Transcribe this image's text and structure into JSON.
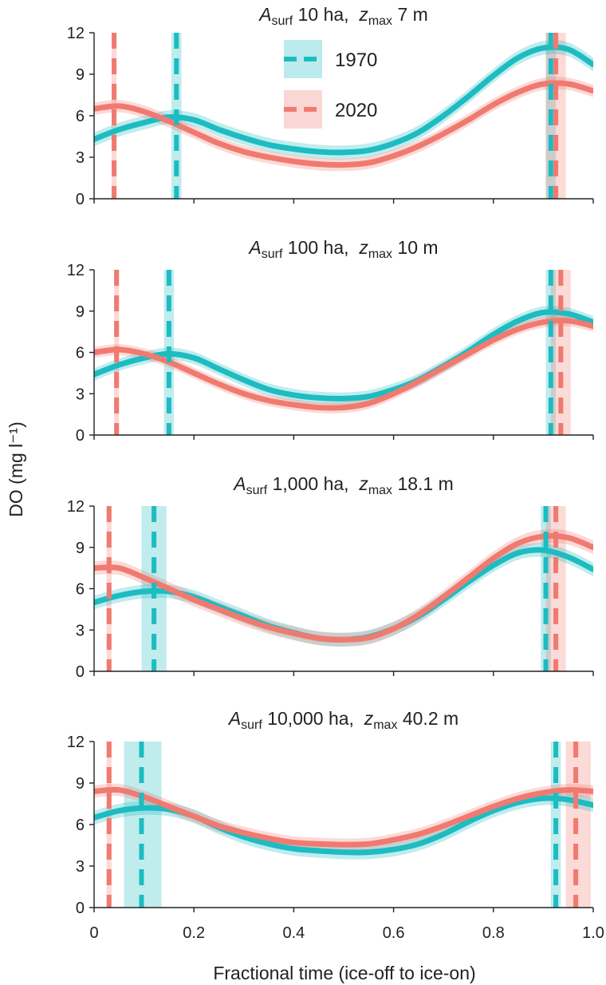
{
  "figure": {
    "ylabel": "DO (mg l⁻¹)",
    "xlabel": "Fractional time (ice-off to ice-on)"
  },
  "legend": {
    "items": [
      {
        "label": "1970",
        "color": "#1dbcc1"
      },
      {
        "label": "2020",
        "color": "#f07a70"
      }
    ]
  },
  "chart_data": [
    {
      "type": "line",
      "title_A": "A",
      "title_A_sub": "surf",
      "title_A_val": " 10 ha,  ",
      "title_z": "z",
      "title_z_sub": "max",
      "title_z_val": " 7 m",
      "xlim": [
        0,
        1
      ],
      "ylim": [
        0,
        12
      ],
      "xticks": [
        0,
        0.2,
        0.4,
        0.6,
        0.8,
        1.0
      ],
      "xtick_labels": [
        "0",
        "0.2",
        "0.4",
        "0.6",
        "0.8",
        "1.0"
      ],
      "yticks": [
        0,
        3,
        6,
        9,
        12
      ],
      "ytick_labels": [
        "0",
        "3",
        "6",
        "9",
        "12"
      ],
      "series": [
        {
          "name": "1970",
          "color": "#1dbcc1",
          "band": 0.5,
          "x": [
            0,
            0.05,
            0.1,
            0.15,
            0.2,
            0.25,
            0.3,
            0.35,
            0.4,
            0.45,
            0.5,
            0.55,
            0.6,
            0.65,
            0.7,
            0.75,
            0.8,
            0.85,
            0.9,
            0.95,
            1.0
          ],
          "y": [
            4.3,
            5.0,
            5.5,
            5.9,
            5.7,
            5.0,
            4.4,
            3.9,
            3.6,
            3.4,
            3.35,
            3.5,
            4.0,
            4.8,
            6.0,
            7.4,
            8.9,
            10.2,
            10.9,
            10.8,
            9.7
          ]
        },
        {
          "name": "2020",
          "color": "#f07a70",
          "band": 0.45,
          "x": [
            0,
            0.05,
            0.1,
            0.15,
            0.2,
            0.25,
            0.3,
            0.35,
            0.4,
            0.45,
            0.5,
            0.55,
            0.6,
            0.65,
            0.7,
            0.75,
            0.8,
            0.85,
            0.9,
            0.95,
            1.0
          ],
          "y": [
            6.5,
            6.7,
            6.3,
            5.6,
            4.8,
            4.0,
            3.4,
            3.0,
            2.7,
            2.5,
            2.45,
            2.6,
            3.1,
            3.8,
            4.7,
            5.7,
            6.8,
            7.7,
            8.3,
            8.3,
            7.8
          ]
        }
      ],
      "vlines": [
        {
          "series": "2020",
          "x": 0.04,
          "lo": 0.035,
          "hi": 0.045,
          "color": "#f07a70"
        },
        {
          "series": "1970",
          "x": 0.165,
          "lo": 0.155,
          "hi": 0.175,
          "color": "#1dbcc1"
        },
        {
          "series": "1970",
          "x": 0.915,
          "lo": 0.905,
          "hi": 0.925,
          "color": "#1dbcc1"
        },
        {
          "series": "2020",
          "x": 0.925,
          "lo": 0.905,
          "hi": 0.945,
          "color": "#f07a70"
        }
      ],
      "show_xticklabels": false
    },
    {
      "type": "line",
      "title_A": "A",
      "title_A_sub": "surf",
      "title_A_val": " 100 ha,  ",
      "title_z": "z",
      "title_z_sub": "max",
      "title_z_val": " 10 m",
      "xlim": [
        0,
        1
      ],
      "ylim": [
        0,
        12
      ],
      "xticks": [
        0,
        0.2,
        0.4,
        0.6,
        0.8,
        1.0
      ],
      "xtick_labels": [
        "0",
        "0.2",
        "0.4",
        "0.6",
        "0.8",
        "1.0"
      ],
      "yticks": [
        0,
        3,
        6,
        9,
        12
      ],
      "ytick_labels": [
        "0",
        "3",
        "6",
        "9",
        "12"
      ],
      "series": [
        {
          "name": "1970",
          "color": "#1dbcc1",
          "band": 0.45,
          "x": [
            0,
            0.05,
            0.1,
            0.15,
            0.2,
            0.25,
            0.3,
            0.35,
            0.4,
            0.45,
            0.5,
            0.55,
            0.6,
            0.65,
            0.7,
            0.75,
            0.8,
            0.85,
            0.9,
            0.95,
            1.0
          ],
          "y": [
            4.4,
            5.1,
            5.6,
            5.9,
            5.6,
            4.8,
            4.0,
            3.3,
            2.9,
            2.7,
            2.65,
            2.8,
            3.3,
            4.0,
            5.0,
            6.1,
            7.3,
            8.3,
            8.9,
            8.8,
            8.2
          ]
        },
        {
          "name": "2020",
          "color": "#f07a70",
          "band": 0.4,
          "x": [
            0,
            0.05,
            0.1,
            0.15,
            0.2,
            0.25,
            0.3,
            0.35,
            0.4,
            0.45,
            0.5,
            0.55,
            0.6,
            0.65,
            0.7,
            0.75,
            0.8,
            0.85,
            0.9,
            0.95,
            1.0
          ],
          "y": [
            6.0,
            6.2,
            5.9,
            5.3,
            4.5,
            3.7,
            3.0,
            2.5,
            2.2,
            2.0,
            2.0,
            2.3,
            3.0,
            3.9,
            4.9,
            5.9,
            6.9,
            7.7,
            8.2,
            8.3,
            7.9
          ]
        }
      ],
      "vlines": [
        {
          "series": "2020",
          "x": 0.045,
          "lo": 0.04,
          "hi": 0.05,
          "color": "#f07a70"
        },
        {
          "series": "1970",
          "x": 0.15,
          "lo": 0.14,
          "hi": 0.16,
          "color": "#1dbcc1"
        },
        {
          "series": "1970",
          "x": 0.915,
          "lo": 0.905,
          "hi": 0.925,
          "color": "#1dbcc1"
        },
        {
          "series": "2020",
          "x": 0.935,
          "lo": 0.915,
          "hi": 0.955,
          "color": "#f07a70"
        }
      ],
      "show_xticklabels": false
    },
    {
      "type": "line",
      "title_A": "A",
      "title_A_sub": "surf",
      "title_A_val": " 1,000 ha,  ",
      "title_z": "z",
      "title_z_sub": "max",
      "title_z_val": " 18.1 m",
      "xlim": [
        0,
        1
      ],
      "ylim": [
        0,
        12
      ],
      "xticks": [
        0,
        0.2,
        0.4,
        0.6,
        0.8,
        1.0
      ],
      "xtick_labels": [
        "0",
        "0.2",
        "0.4",
        "0.6",
        "0.8",
        "1.0"
      ],
      "yticks": [
        0,
        3,
        6,
        9,
        12
      ],
      "ytick_labels": [
        "0",
        "3",
        "6",
        "9",
        "12"
      ],
      "series": [
        {
          "name": "1970",
          "color": "#1dbcc1",
          "band": 0.5,
          "x": [
            0,
            0.05,
            0.1,
            0.15,
            0.2,
            0.25,
            0.3,
            0.35,
            0.4,
            0.45,
            0.5,
            0.55,
            0.6,
            0.65,
            0.7,
            0.75,
            0.8,
            0.85,
            0.9,
            0.95,
            1.0
          ],
          "y": [
            5.0,
            5.5,
            5.8,
            5.8,
            5.4,
            4.7,
            4.0,
            3.3,
            2.8,
            2.4,
            2.3,
            2.5,
            3.1,
            4.0,
            5.2,
            6.5,
            7.7,
            8.6,
            8.8,
            8.3,
            7.4
          ]
        },
        {
          "name": "2020",
          "color": "#f07a70",
          "band": 0.5,
          "x": [
            0,
            0.05,
            0.1,
            0.15,
            0.2,
            0.25,
            0.3,
            0.35,
            0.4,
            0.45,
            0.5,
            0.55,
            0.6,
            0.65,
            0.7,
            0.75,
            0.8,
            0.85,
            0.9,
            0.95,
            1.0
          ],
          "y": [
            7.5,
            7.5,
            6.8,
            6.0,
            5.2,
            4.5,
            3.8,
            3.2,
            2.75,
            2.4,
            2.3,
            2.45,
            3.1,
            4.1,
            5.4,
            6.8,
            8.2,
            9.3,
            9.8,
            9.7,
            9.0
          ]
        }
      ],
      "vlines": [
        {
          "series": "2020",
          "x": 0.03,
          "lo": 0.025,
          "hi": 0.035,
          "color": "#f07a70"
        },
        {
          "series": "1970",
          "x": 0.12,
          "lo": 0.095,
          "hi": 0.145,
          "color": "#1dbcc1"
        },
        {
          "series": "1970",
          "x": 0.905,
          "lo": 0.895,
          "hi": 0.915,
          "color": "#1dbcc1"
        },
        {
          "series": "2020",
          "x": 0.925,
          "lo": 0.905,
          "hi": 0.945,
          "color": "#f07a70"
        }
      ],
      "show_xticklabels": false
    },
    {
      "type": "line",
      "title_A": "A",
      "title_A_sub": "surf",
      "title_A_val": " 10,000 ha,  ",
      "title_z": "z",
      "title_z_sub": "max",
      "title_z_val": " 40.2 m",
      "xlim": [
        0,
        1
      ],
      "ylim": [
        0,
        12
      ],
      "xticks": [
        0,
        0.2,
        0.4,
        0.6,
        0.8,
        1.0
      ],
      "xtick_labels": [
        "0",
        "0.2",
        "0.4",
        "0.6",
        "0.8",
        "1.0"
      ],
      "yticks": [
        0,
        3,
        6,
        9,
        12
      ],
      "ytick_labels": [
        "0",
        "3",
        "6",
        "9",
        "12"
      ],
      "series": [
        {
          "name": "1970",
          "color": "#1dbcc1",
          "band": 0.5,
          "x": [
            0,
            0.05,
            0.1,
            0.15,
            0.2,
            0.25,
            0.3,
            0.35,
            0.4,
            0.45,
            0.5,
            0.55,
            0.6,
            0.65,
            0.7,
            0.75,
            0.8,
            0.85,
            0.9,
            0.95,
            1.0
          ],
          "y": [
            6.5,
            7.0,
            7.2,
            7.1,
            6.6,
            5.8,
            5.1,
            4.6,
            4.25,
            4.1,
            4.0,
            4.0,
            4.2,
            4.6,
            5.3,
            6.2,
            7.0,
            7.6,
            7.9,
            7.8,
            7.4
          ]
        },
        {
          "name": "2020",
          "color": "#f07a70",
          "band": 0.45,
          "x": [
            0,
            0.05,
            0.1,
            0.15,
            0.2,
            0.25,
            0.3,
            0.35,
            0.4,
            0.45,
            0.5,
            0.55,
            0.6,
            0.65,
            0.7,
            0.75,
            0.8,
            0.85,
            0.9,
            0.95,
            1.0
          ],
          "y": [
            8.4,
            8.5,
            8.0,
            7.3,
            6.6,
            5.9,
            5.4,
            5.0,
            4.7,
            4.6,
            4.55,
            4.6,
            4.9,
            5.3,
            5.9,
            6.6,
            7.3,
            7.9,
            8.3,
            8.5,
            8.4
          ]
        }
      ],
      "vlines": [
        {
          "series": "2020",
          "x": 0.03,
          "lo": 0.025,
          "hi": 0.035,
          "color": "#f07a70"
        },
        {
          "series": "1970",
          "x": 0.095,
          "lo": 0.06,
          "hi": 0.135,
          "color": "#1dbcc1"
        },
        {
          "series": "1970",
          "x": 0.925,
          "lo": 0.915,
          "hi": 0.935,
          "color": "#1dbcc1"
        },
        {
          "series": "2020",
          "x": 0.965,
          "lo": 0.945,
          "hi": 0.995,
          "color": "#f07a70"
        }
      ],
      "show_xticklabels": true
    }
  ]
}
